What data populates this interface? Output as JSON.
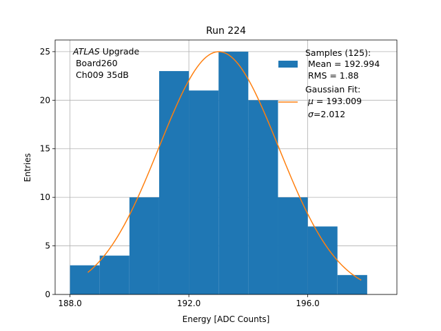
{
  "chart_data": {
    "type": "bar",
    "title": "Run 224",
    "xlabel": "Energy [ADC Counts]",
    "ylabel": "Entries",
    "xlim": [
      187.5,
      199.0
    ],
    "ylim": [
      0,
      26.2
    ],
    "x_ticks": [
      188.0,
      192.0,
      196.0
    ],
    "x_tick_labels": [
      "188.0",
      "192.0",
      "196.0"
    ],
    "y_ticks": [
      0,
      5,
      10,
      15,
      20,
      25
    ],
    "grid": true,
    "bins": [
      {
        "x0": 188,
        "x1": 189,
        "count": 3
      },
      {
        "x0": 189,
        "x1": 190,
        "count": 4
      },
      {
        "x0": 190,
        "x1": 191,
        "count": 10
      },
      {
        "x0": 191,
        "x1": 192,
        "count": 23
      },
      {
        "x0": 192,
        "x1": 193,
        "count": 21
      },
      {
        "x0": 193,
        "x1": 194,
        "count": 25
      },
      {
        "x0": 194,
        "x1": 195,
        "count": 20
      },
      {
        "x0": 195,
        "x1": 196,
        "count": 10
      },
      {
        "x0": 196,
        "x1": 197,
        "count": 7
      },
      {
        "x0": 197,
        "x1": 198,
        "count": 2
      }
    ],
    "fit": {
      "type": "gaussian",
      "mu": 193.009,
      "sigma": 2.012,
      "amplitude": 25.0,
      "x_range": [
        188.6,
        197.8
      ]
    },
    "colors": {
      "hist": "#1f77b4",
      "fit": "#ff7f0e",
      "grid": "#b0b0b0"
    },
    "annotation": {
      "line1_italic": "ATLAS",
      "line1_rest": " Upgrade",
      "line2": " Board260",
      "line3": " Ch009 35dB"
    },
    "legend": {
      "placement": "top-right",
      "samples_line1": "Samples (125):",
      "samples_line2": " Mean = 192.994",
      "samples_line3": " RMS = 1.88",
      "fit_line1": "Gaussian Fit:",
      "fit_line2_symbol": "μ",
      "fit_line2_rest": " = 193.009",
      "fit_line3_symbol": "σ",
      "fit_line3_rest": "=2.012"
    }
  }
}
